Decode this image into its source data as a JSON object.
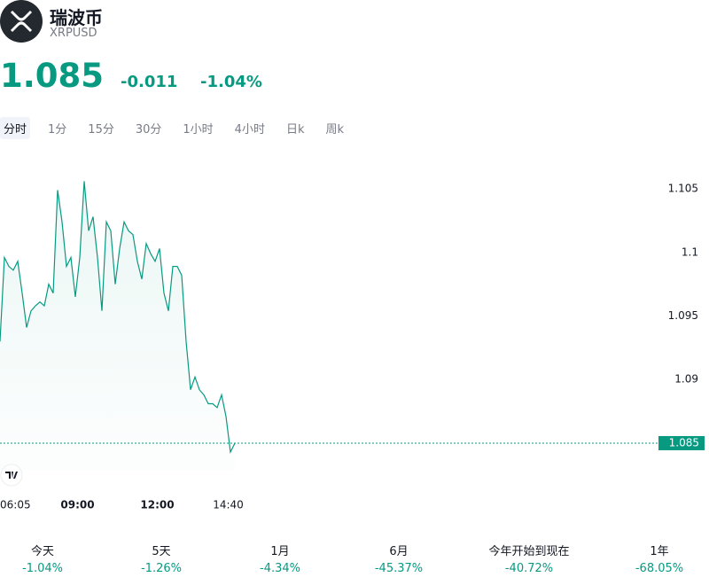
{
  "header": {
    "name": "瑞波币",
    "symbol": "XRPUSD",
    "price": "1.085",
    "change": "-0.011",
    "change_percent": "-1.04%"
  },
  "tabs": [
    "分时",
    "1分",
    "15分",
    "30分",
    "1小时",
    "4小时",
    "日k",
    "周k"
  ],
  "active_tab": 0,
  "chart_data": {
    "type": "line",
    "x": [
      "06:05",
      "06:15",
      "06:25",
      "06:35",
      "06:45",
      "06:55",
      "07:05",
      "07:15",
      "07:25",
      "07:35",
      "07:45",
      "07:55",
      "08:05",
      "08:15",
      "08:25",
      "08:35",
      "08:45",
      "08:55",
      "09:05",
      "09:15",
      "09:25",
      "09:35",
      "09:45",
      "09:55",
      "10:05",
      "10:15",
      "10:25",
      "10:35",
      "10:45",
      "10:55",
      "11:05",
      "11:15",
      "11:25",
      "11:35",
      "11:45",
      "11:55",
      "12:05",
      "12:15",
      "12:25",
      "12:35",
      "12:45",
      "12:55",
      "13:05",
      "13:15",
      "13:25",
      "13:35",
      "13:45",
      "13:55",
      "14:05",
      "14:15",
      "14:25",
      "14:35",
      "14:45",
      "14:55"
    ],
    "series": [
      {
        "color": "#089981",
        "values": [
          1.093,
          1.0996,
          1.0989,
          1.0986,
          1.0993,
          1.0968,
          1.0941,
          1.0954,
          1.0958,
          1.0961,
          1.0958,
          1.0975,
          1.0968,
          1.1049,
          1.1024,
          1.0989,
          1.0996,
          1.0965,
          1.0996,
          1.1056,
          1.1017,
          1.1028,
          1.0996,
          1.0954,
          1.1024,
          1.1017,
          1.0975,
          1.1003,
          1.1024,
          1.1017,
          1.1014,
          1.0993,
          1.0979,
          1.1007,
          1.0999,
          1.0993,
          1.1003,
          1.0968,
          1.0954,
          1.0989,
          1.0989,
          1.0982,
          1.093,
          1.0892,
          1.0902,
          1.0892,
          1.0888,
          1.0881,
          1.0881,
          1.0878,
          1.0888,
          1.0871,
          1.0843,
          1.085
        ]
      }
    ],
    "xticks": [
      "06:05",
      "09:00",
      "12:00",
      "14:40"
    ],
    "ylim": [
      1.082,
      1.108
    ],
    "yticks": [
      1.105,
      1.1,
      1.095,
      1.09
    ],
    "last_price_label": "1.085"
  },
  "performance": [
    {
      "label": "今天",
      "value": "-1.04%"
    },
    {
      "label": "5天",
      "value": "-1.26%"
    },
    {
      "label": "1月",
      "value": "-4.34%"
    },
    {
      "label": "6月",
      "value": "-45.37%"
    },
    {
      "label": "今年开始到现在",
      "value": "-40.72%"
    },
    {
      "label": "1年",
      "value": "-68.05%"
    }
  ]
}
